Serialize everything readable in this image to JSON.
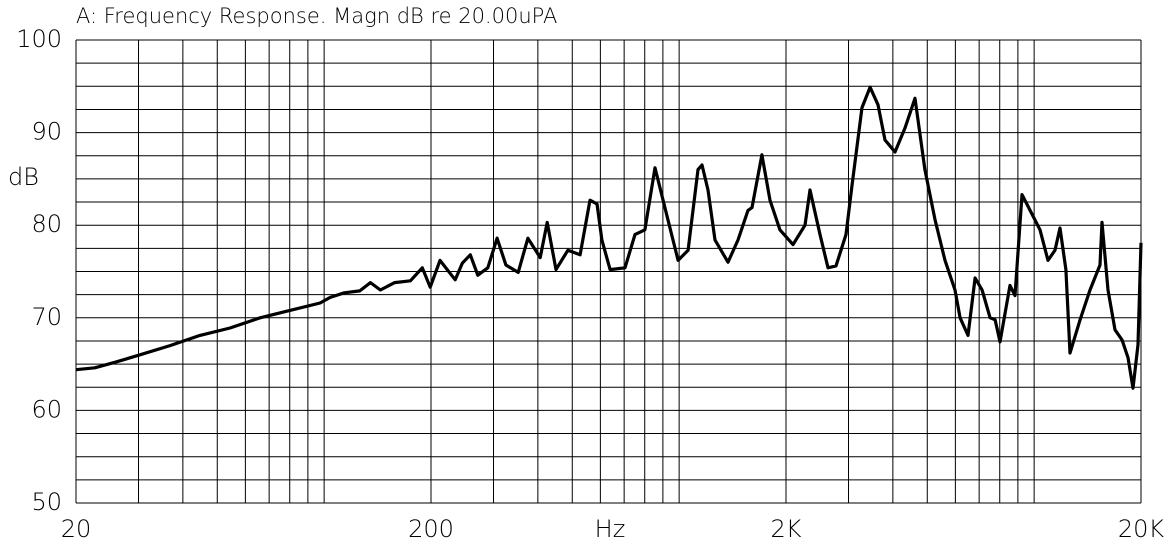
{
  "chart_data": {
    "type": "line",
    "title": "A: Frequency Response. Magn dB re 20.00uPA",
    "y_label": "dB",
    "x_label": "Hz",
    "log_x": true,
    "grid": true,
    "xlim": [
      20,
      20000
    ],
    "ylim": [
      50,
      100
    ],
    "xticks": [
      20,
      200,
      {
        "value": 2000,
        "label": "2K"
      },
      {
        "value": 20000,
        "label": "20K"
      }
    ],
    "yticks": [
      50,
      60,
      70,
      80,
      90,
      100
    ],
    "x_minor_grid": [
      30,
      40,
      50,
      60,
      70,
      80,
      90,
      100,
      300,
      400,
      500,
      600,
      700,
      800,
      900,
      1000,
      3000,
      4000,
      5000,
      6000,
      7000,
      8000,
      9000,
      10000
    ],
    "y_minor_grid": [
      52.5,
      55,
      57.5,
      62.5,
      65,
      67.5,
      72.5,
      75,
      77.5,
      82.5,
      85,
      87.5,
      92.5,
      95,
      97.5
    ],
    "x": [
      20,
      22.6,
      25.8,
      30.3,
      36.8,
      44.7,
      54.3,
      66.0,
      80.1,
      97.4,
      104,
      114,
      126,
      135,
      144,
      158,
      175,
      189,
      199,
      212,
      234,
      245,
      258,
      271,
      289,
      307,
      325,
      352,
      375,
      406,
      425,
      450,
      486,
      526,
      561,
      587,
      606,
      639,
      704,
      751,
      801,
      855,
      930,
      993,
      1060,
      1130,
      1160,
      1206,
      1262,
      1373,
      1465,
      1563,
      1604,
      1711,
      1803,
      1923,
      2093,
      2263,
      2337,
      2494,
      2626,
      2766,
      2952,
      3069,
      3275,
      3450,
      3633,
      3801,
      4055,
      4327,
      4617,
      4925,
      5257,
      5609,
      5985,
      6185,
      6512,
      6817,
      7135,
      7514,
      7762,
      8016,
      8552,
      8835,
      9244,
      9739,
      10390,
      10940,
      11450,
      11830,
      12290,
      12620,
      13470,
      14370,
      15330,
      15530,
      16150,
      16900,
      17690,
      18380,
      18990,
      19610,
      20000
    ],
    "series": [
      {
        "name": "A",
        "color": "#000000",
        "values": [
          64.4,
          64.6,
          65.2,
          66.0,
          67.0,
          68.1,
          68.9,
          70.0,
          70.8,
          71.6,
          72.2,
          72.7,
          72.9,
          73.8,
          73.0,
          73.8,
          74.0,
          75.4,
          73.3,
          76.2,
          74.1,
          75.9,
          76.8,
          74.6,
          75.4,
          78.6,
          75.7,
          74.9,
          78.6,
          76.5,
          80.3,
          75.2,
          77.3,
          76.8,
          82.7,
          82.3,
          78.4,
          75.2,
          75.4,
          79.0,
          79.5,
          86.2,
          80.6,
          76.2,
          77.3,
          86.0,
          86.5,
          83.8,
          78.4,
          76.0,
          78.4,
          81.6,
          81.9,
          87.6,
          82.7,
          79.5,
          77.9,
          80.0,
          83.8,
          79.0,
          75.4,
          75.6,
          79.0,
          84.3,
          92.7,
          94.9,
          93.0,
          89.2,
          87.9,
          90.5,
          93.7,
          86.0,
          80.6,
          76.2,
          73.0,
          70.0,
          68.1,
          74.3,
          73.0,
          70.0,
          69.8,
          67.4,
          73.5,
          72.4,
          83.3,
          81.6,
          79.5,
          76.2,
          77.3,
          79.7,
          75.2,
          66.2,
          69.8,
          73.0,
          75.7,
          80.3,
          73.0,
          68.7,
          67.6,
          65.7,
          62.4,
          67.1,
          78.1
        ]
      }
    ]
  }
}
